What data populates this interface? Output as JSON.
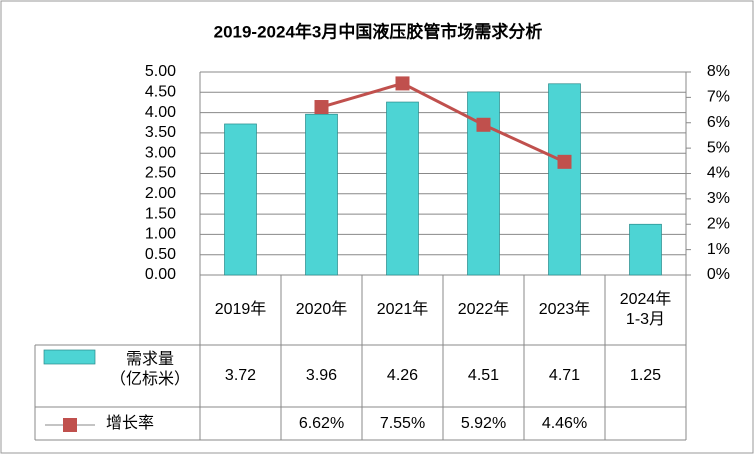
{
  "chart_data": {
    "type": "bar-line",
    "title": "2019-2024年3月中国液压胶管市场需求分析",
    "categories": [
      "2019年",
      "2020年",
      "2021年",
      "2022年",
      "2023年",
      "2024年\n1-3月"
    ],
    "series": [
      {
        "name": "需求量\n（亿标米）",
        "type": "bar",
        "color": "#4dd4d4",
        "values": [
          3.72,
          3.96,
          4.26,
          4.51,
          4.71,
          1.25
        ]
      },
      {
        "name": "增长率",
        "type": "line",
        "axis": "y2",
        "color": "#c0504d",
        "values": [
          null,
          6.62,
          7.55,
          5.92,
          4.46,
          null
        ],
        "value_labels": [
          null,
          "6.62%",
          "7.55%",
          "5.92%",
          "4.46%",
          null
        ]
      }
    ],
    "ylim": [
      0,
      5
    ],
    "yticks": [
      {
        "value": 0,
        "label": "0.00"
      },
      {
        "value": 0.5,
        "label": "0.50"
      },
      {
        "value": 1,
        "label": "1.00"
      },
      {
        "value": 1.5,
        "label": "1.50"
      },
      {
        "value": 2,
        "label": "2.00"
      },
      {
        "value": 2.5,
        "label": "2.50"
      },
      {
        "value": 3,
        "label": "3.00"
      },
      {
        "value": 3.5,
        "label": "3.50"
      },
      {
        "value": 4,
        "label": "4.00"
      },
      {
        "value": 4.5,
        "label": "4.50"
      },
      {
        "value": 5,
        "label": "5.00"
      }
    ],
    "y2lim": [
      0,
      8
    ],
    "y2ticks": [
      {
        "value": 0,
        "label": "0%"
      },
      {
        "value": 1,
        "label": "1%"
      },
      {
        "value": 2,
        "label": "2%"
      },
      {
        "value": 3,
        "label": "3%"
      },
      {
        "value": 4,
        "label": "4%"
      },
      {
        "value": 5,
        "label": "5%"
      },
      {
        "value": 6,
        "label": "6%"
      },
      {
        "value": 7,
        "label": "7%"
      },
      {
        "value": 8,
        "label": "8%"
      }
    ],
    "grid": true
  }
}
